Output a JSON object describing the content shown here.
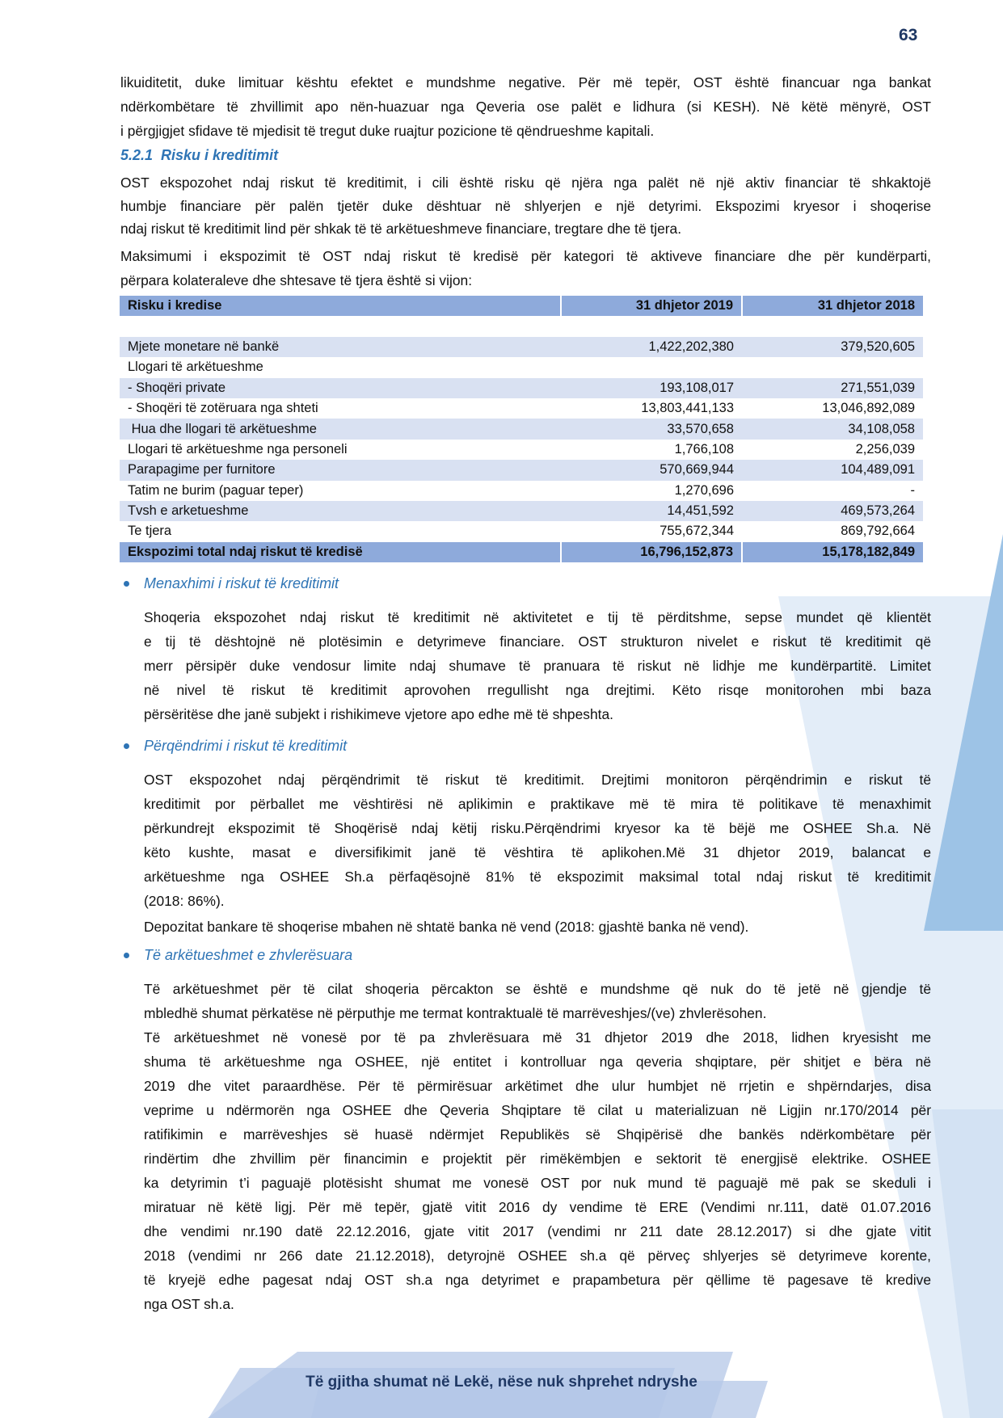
{
  "page_number": "63",
  "colors": {
    "accent": "#2e74b5",
    "table_header": "#8eaadb",
    "table_band": "#d9e1f2",
    "footer_text": "#1f3864"
  },
  "intro": {
    "lines": [
      "likuiditetit, duke limituar kështu efektet e mundshme negative. Për më tepër, OST është financuar nga bankat",
      "ndërkombëtare të zhvillimit apo nën-huazuar nga Qeveria ose palët e lidhura (si KESH). Në këtë mënyrë, OST",
      "i përgjigjet sfidave të mjedisit të tregut duke ruajtur pozicione të qëndrueshme kapitali."
    ]
  },
  "section": {
    "heading": "5.2.1  Risku i kreditimit",
    "para1": [
      "OST ekspozohet ndaj riskut të kreditimit, i cili është risku që njëra nga palët në një aktiv financiar të shkaktojë",
      "humbje financiare për palën tjetër duke dështuar në shlyerjen e një detyrimi. Ekspozimi kryesor i shoqerise",
      "ndaj riskut të kreditimit lind për shkak të të arkëtueshmeve financiare, tregtare dhe të tjera."
    ],
    "para2": [
      "Maksimumi i ekspozimit të OST ndaj riskut të kredisë për kategori të aktiveve financiare dhe për kundërparti,",
      "përpara kolateraleve dhe shtesave të tjera është si vijon:"
    ]
  },
  "table": {
    "headers": [
      "Risku i kredise",
      "31 dhjetor 2019",
      "31 dhjetor 2018"
    ],
    "rows": [
      [
        "Mjete monetare në bankë",
        "1,422,202,380",
        "379,520,605"
      ],
      [
        "Llogari të arkëtueshme",
        "",
        ""
      ],
      [
        "- Shoqëri private",
        "193,108,017",
        "271,551,039"
      ],
      [
        "- Shoqëri të zotëruara nga shteti",
        "13,803,441,133",
        "13,046,892,089"
      ],
      [
        " Hua dhe llogari të arkëtueshme",
        "33,570,658",
        "34,108,058"
      ],
      [
        "Llogari të arkëtueshme nga personeli",
        "1,766,108",
        "2,256,039"
      ],
      [
        "Parapagime per furnitore",
        "570,669,944",
        "104,489,091"
      ],
      [
        "Tatim ne burim (paguar teper)",
        "1,270,696",
        "-"
      ],
      [
        "Tvsh e arketueshme",
        "14,451,592",
        "469,573,264"
      ],
      [
        "Te tjera",
        "755,672,344",
        "869,792,664"
      ]
    ],
    "total": [
      "Ekspozimi total ndaj riskut të kredisë",
      "16,796,152,873",
      "15,178,182,849"
    ]
  },
  "bullets": [
    {
      "title": "Menaxhimi i riskut të kreditimit",
      "paragraphs": [
        [
          "Shoqeria ekspozohet ndaj riskut të kreditimit në aktivitetet e tij të përditshme, sepse mundet që klientët",
          "e tij të dështojnë në plotësimin e detyrimeve financiare. OST strukturon nivelet e riskut të kreditimit që",
          "merr përsipër duke vendosur limite ndaj shumave të pranuara të riskut në lidhje me kundërpartitë. Limitet",
          "në nivel të riskut të kreditimit aprovohen rregullisht nga drejtimi. Këto risqe monitorohen mbi baza",
          "përsëritëse dhe janë subjekt i rishikimeve vjetore apo edhe më të shpeshta."
        ]
      ]
    },
    {
      "title": "Përqëndrimi i riskut të kreditimit",
      "paragraphs": [
        [
          "OST ekspozohet ndaj përqëndrimit të riskut të kreditimit. Drejtimi monitoron përqëndrimin e riskut të",
          "kreditimit por përballet me vështirësi në aplikimin e praktikave më të mira të politikave të menaxhimit",
          "përkundrejt ekspozimit të Shoqërisë ndaj këtij risku.Përqëndrimi kryesor ka të bëjë me OSHEE Sh.a. Në",
          "këto kushte, masat e diversifikimit janë të vështira të aplikohen.Më 31 dhjetor 2019, balancat e",
          "arkëtueshme nga OSHEE Sh.a përfaqësojnë 81% të ekspozimit maksimal total ndaj riskut të kreditimit",
          "(2018: 86%)."
        ],
        [
          "Depozitat bankare të shoqerise mbahen në shtatë banka në vend (2018: gjashtë banka në vend)."
        ]
      ]
    },
    {
      "title": "Të arkëtueshmet e zhvlerësuara",
      "paragraphs": [
        [
          "Të arkëtueshmet për të cilat shoqeria përcakton se është e mundshme që nuk do të jetë në gjendje të",
          "mbledhë shumat përkatëse në përputhje me termat kontraktualë të marrëveshjes/(ve) zhvlerësohen."
        ],
        [
          "Të arkëtueshmet në vonesë por të pa zhvlerësuara më 31 dhjetor 2019 dhe 2018, lidhen kryesisht me",
          "shuma të arkëtueshme nga OSHEE, një entitet i kontrolluar nga qeveria shqiptare, për shitjet e bëra në",
          "2019 dhe vitet paraardhëse. Për të përmirësuar arkëtimet dhe ulur humbjet në rrjetin e shpërndarjes, disa",
          "veprime u ndërmorën nga OSHEE dhe Qeveria Shqiptare të cilat u materializuan në Ligjin nr.170/2014 për",
          "ratifikimin e marrëveshjes së huasë ndërmjet Republikës së Shqipërisë dhe bankës ndërkombëtare për",
          "rindërtim dhe zhvillim për financimin e projektit për rimëkëmbjen e sektorit të energjisë elektrike. OSHEE",
          "ka detyrimin t’i paguajë plotësisht shumat me vonesë OST por nuk mund të paguajë më pak se skeduli i",
          "miratuar në këtë ligj. Për më tepër, gjatë vitit 2016 dy vendime të ERE (Vendimi nr.111, datë 01.07.2016",
          "dhe vendimi nr.190 datë 22.12.2016, gjate vitit 2017 (vendimi nr 211 date 28.12.2017) si dhe gjate vitit",
          "2018 (vendimi nr 266 date 21.12.2018), detyrojnë OSHEE sh.a që përveç shlyerjes së detyrimeve korente,",
          "të kryejë edhe pagesat ndaj OST sh.a nga detyrimet e prapambetura për qëllime të pagesave të kredive",
          "nga OST sh.a."
        ]
      ]
    }
  ],
  "footer": "Të gjitha shumat në Lekë, nëse nuk shprehet ndryshe"
}
